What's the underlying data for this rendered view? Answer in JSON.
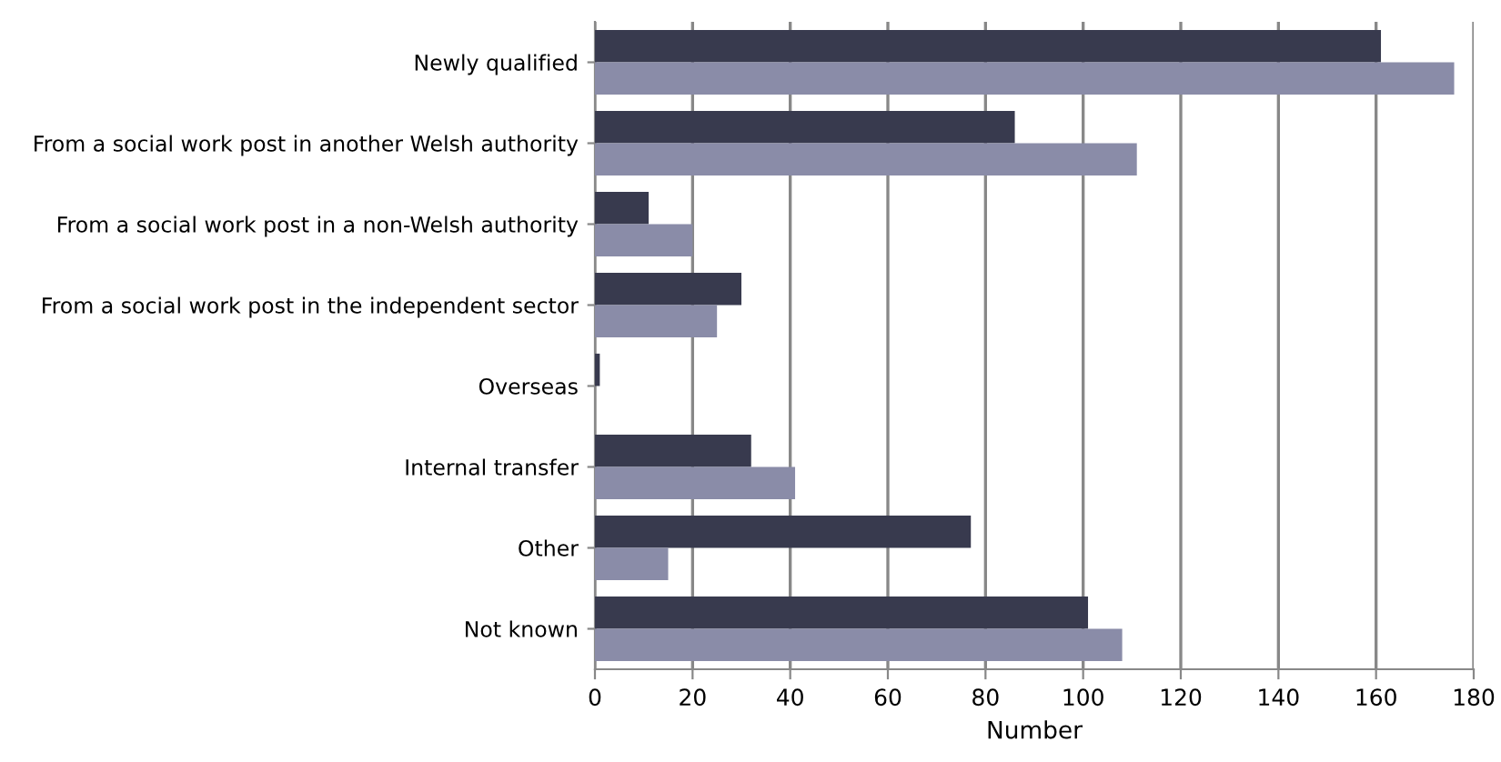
{
  "chart_data": {
    "type": "bar",
    "orientation": "horizontal",
    "xlabel": "Number",
    "categories": [
      "Newly qualified",
      "From a social work post in another Welsh authority",
      "From a social work post in a non-Welsh authority",
      "From a social work post in the independent sector",
      "Overseas",
      "Internal transfer",
      "Other",
      "Not known"
    ],
    "series": [
      {
        "color": "#383a4e",
        "values": [
          161,
          86,
          11,
          30,
          1,
          32,
          77,
          101
        ]
      },
      {
        "color": "#8a8ca8",
        "values": [
          176,
          111,
          20,
          25,
          0,
          41,
          15,
          108
        ]
      }
    ],
    "xlim": [
      0,
      180
    ],
    "xticks": [
      0,
      20,
      40,
      60,
      80,
      100,
      120,
      140,
      160,
      180
    ],
    "grid": "x",
    "legend": false
  }
}
